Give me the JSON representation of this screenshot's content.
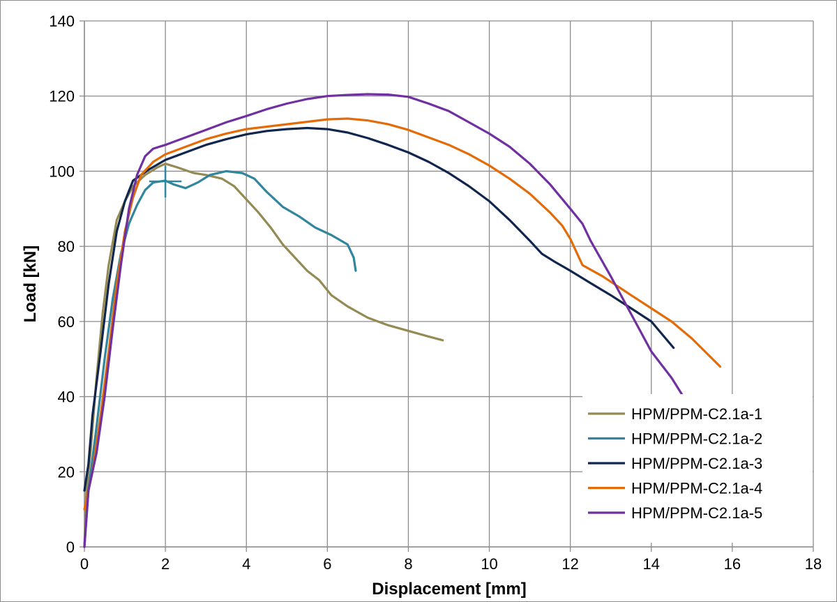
{
  "chart_data": {
    "type": "line",
    "xlabel": "Displacement [mm]",
    "ylabel": "Load [kN]",
    "xlim": [
      0,
      18
    ],
    "ylim": [
      0,
      140
    ],
    "xticks": [
      "0",
      "2",
      "4",
      "6",
      "8",
      "10",
      "12",
      "14",
      "16",
      "18"
    ],
    "yticks": [
      "0",
      "20",
      "40",
      "60",
      "80",
      "100",
      "120",
      "140"
    ],
    "grid": true,
    "legend_position": "bottom-right",
    "series": [
      {
        "name": "HPM/PPM-C2.1a-1",
        "color": "#948a54",
        "points": [
          [
            0,
            0
          ],
          [
            0.05,
            15
          ],
          [
            0.15,
            25
          ],
          [
            0.3,
            45
          ],
          [
            0.45,
            62
          ],
          [
            0.6,
            75
          ],
          [
            0.8,
            87
          ],
          [
            1.0,
            92
          ],
          [
            1.2,
            96
          ],
          [
            1.5,
            99
          ],
          [
            1.8,
            101
          ],
          [
            2.0,
            102
          ],
          [
            2.3,
            101
          ],
          [
            2.7,
            99.5
          ],
          [
            3.0,
            99
          ],
          [
            3.4,
            98
          ],
          [
            3.7,
            96
          ],
          [
            4.0,
            92.5
          ],
          [
            4.3,
            89
          ],
          [
            4.6,
            85
          ],
          [
            4.9,
            80.5
          ],
          [
            5.2,
            77
          ],
          [
            5.5,
            73.5
          ],
          [
            5.8,
            71
          ],
          [
            6.1,
            67
          ],
          [
            6.5,
            64
          ],
          [
            7.0,
            61
          ],
          [
            7.5,
            59
          ],
          [
            8.0,
            57.5
          ],
          [
            8.5,
            56
          ],
          [
            8.85,
            55
          ]
        ]
      },
      {
        "name": "HPM/PPM-C2.1a-2",
        "color": "#31859c",
        "points": [
          [
            0,
            0
          ],
          [
            0.1,
            15
          ],
          [
            0.3,
            32
          ],
          [
            0.5,
            50
          ],
          [
            0.7,
            66
          ],
          [
            0.9,
            78
          ],
          [
            1.1,
            86
          ],
          [
            1.3,
            91
          ],
          [
            1.5,
            95
          ],
          [
            1.7,
            97
          ],
          [
            2.0,
            97.5
          ],
          [
            2.2,
            96.5
          ],
          [
            2.5,
            95.5
          ],
          [
            2.8,
            97
          ],
          [
            3.1,
            99
          ],
          [
            3.5,
            100
          ],
          [
            3.9,
            99.5
          ],
          [
            4.2,
            98
          ],
          [
            4.5,
            94.5
          ],
          [
            4.9,
            90.5
          ],
          [
            5.3,
            88
          ],
          [
            5.7,
            85
          ],
          [
            6.1,
            83
          ],
          [
            6.5,
            80.5
          ],
          [
            6.65,
            77
          ],
          [
            6.7,
            73.5
          ]
        ]
      },
      {
        "name": "HPM/PPM-C2.1a-3",
        "color": "#10264c",
        "points": [
          [
            0,
            15
          ],
          [
            0.1,
            22
          ],
          [
            0.2,
            35
          ],
          [
            0.4,
            52
          ],
          [
            0.6,
            70
          ],
          [
            0.8,
            84
          ],
          [
            1.0,
            92
          ],
          [
            1.2,
            97.5
          ],
          [
            1.6,
            100.5
          ],
          [
            2.0,
            103
          ],
          [
            2.5,
            105
          ],
          [
            3.0,
            107
          ],
          [
            3.5,
            108.5
          ],
          [
            4.0,
            109.8
          ],
          [
            4.5,
            110.7
          ],
          [
            5.0,
            111.2
          ],
          [
            5.5,
            111.5
          ],
          [
            6.0,
            111.2
          ],
          [
            6.5,
            110.3
          ],
          [
            7.0,
            108.8
          ],
          [
            7.5,
            107
          ],
          [
            8.0,
            105
          ],
          [
            8.5,
            102.5
          ],
          [
            9.0,
            99.5
          ],
          [
            9.5,
            96
          ],
          [
            10.0,
            92
          ],
          [
            10.5,
            87
          ],
          [
            11.0,
            81.5
          ],
          [
            11.3,
            78
          ],
          [
            11.6,
            76
          ],
          [
            12.0,
            73.5
          ],
          [
            12.5,
            70.2
          ],
          [
            13.0,
            67
          ],
          [
            13.5,
            63.5
          ],
          [
            14.0,
            60
          ],
          [
            14.55,
            53
          ]
        ]
      },
      {
        "name": "HPM/PPM-C2.1a-4",
        "color": "#e36c09",
        "points": [
          [
            0,
            10
          ],
          [
            0.2,
            20
          ],
          [
            0.4,
            35
          ],
          [
            0.6,
            52
          ],
          [
            0.8,
            70
          ],
          [
            1.0,
            84
          ],
          [
            1.2,
            93
          ],
          [
            1.4,
            99
          ],
          [
            1.7,
            102.5
          ],
          [
            2.0,
            104.5
          ],
          [
            2.5,
            106.5
          ],
          [
            3.0,
            108.5
          ],
          [
            3.5,
            110
          ],
          [
            4.0,
            111.2
          ],
          [
            5.0,
            112.5
          ],
          [
            6.0,
            113.8
          ],
          [
            6.5,
            114
          ],
          [
            7.0,
            113.5
          ],
          [
            7.5,
            112.5
          ],
          [
            8.0,
            111
          ],
          [
            8.5,
            109
          ],
          [
            9.0,
            107
          ],
          [
            9.5,
            104.5
          ],
          [
            10.0,
            101.5
          ],
          [
            10.5,
            98
          ],
          [
            11.0,
            94
          ],
          [
            11.5,
            89
          ],
          [
            11.8,
            85.5
          ],
          [
            12.0,
            82
          ],
          [
            12.3,
            75
          ],
          [
            12.8,
            72
          ],
          [
            13.5,
            67
          ],
          [
            14.0,
            63.5
          ],
          [
            14.5,
            60
          ],
          [
            15.0,
            55.5
          ],
          [
            15.7,
            48
          ]
        ]
      },
      {
        "name": "HPM/PPM-C2.1a-5",
        "color": "#7030a0",
        "points": [
          [
            0,
            0
          ],
          [
            0.1,
            15
          ],
          [
            0.3,
            25
          ],
          [
            0.5,
            40
          ],
          [
            0.7,
            58
          ],
          [
            0.9,
            75
          ],
          [
            1.1,
            90
          ],
          [
            1.3,
            99
          ],
          [
            1.5,
            104
          ],
          [
            1.7,
            106
          ],
          [
            2.0,
            107
          ],
          [
            2.5,
            109
          ],
          [
            3.0,
            111
          ],
          [
            3.5,
            113
          ],
          [
            4.0,
            114.7
          ],
          [
            4.5,
            116.5
          ],
          [
            5.0,
            118
          ],
          [
            5.5,
            119.2
          ],
          [
            6.0,
            120
          ],
          [
            6.5,
            120.3
          ],
          [
            7.0,
            120.5
          ],
          [
            7.5,
            120.4
          ],
          [
            8.0,
            119.8
          ],
          [
            8.5,
            118
          ],
          [
            9.0,
            116
          ],
          [
            9.5,
            113
          ],
          [
            10.0,
            110
          ],
          [
            10.5,
            106.5
          ],
          [
            11.0,
            102
          ],
          [
            11.5,
            96.5
          ],
          [
            12.0,
            90
          ],
          [
            12.3,
            86
          ],
          [
            12.5,
            81.5
          ],
          [
            13.0,
            72
          ],
          [
            13.5,
            62
          ],
          [
            14.0,
            52
          ],
          [
            14.5,
            45
          ],
          [
            14.85,
            39
          ]
        ]
      }
    ]
  }
}
